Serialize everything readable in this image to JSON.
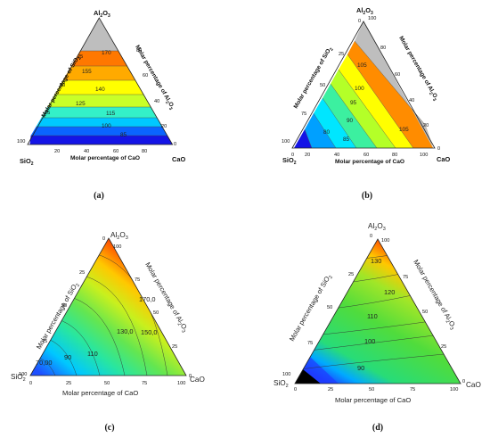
{
  "chart_data": [
    {
      "panel": "a",
      "type": "ternary",
      "caption": "(a)",
      "corners": {
        "top": "Al2O3",
        "left": "SiO2",
        "right": "CaO"
      },
      "axis_labels": {
        "left": "Molar percentage of SiO2",
        "right": "Molar percentage of Al2O3",
        "bottom": "Molar percentage of CaO"
      },
      "ticks_left": [
        "25",
        "50",
        "75",
        "100"
      ],
      "ticks_right": [
        "80",
        "60",
        "40",
        "20",
        "0"
      ],
      "ticks_bottom": [
        "20",
        "40",
        "60",
        "80"
      ],
      "contour_labels": [
        "170",
        "155",
        "140",
        "125",
        "115",
        "100",
        "85"
      ],
      "colors": [
        "#1414e6",
        "#0a64ff",
        "#00c8ff",
        "#34f0c8",
        "#c8ff28",
        "#ffff00",
        "#ffaa00",
        "#ff7800",
        "#bebebe"
      ]
    },
    {
      "panel": "b",
      "type": "ternary",
      "caption": "(b)",
      "corners": {
        "top": "Al2O3",
        "left": "SiO2",
        "right": "CaO"
      },
      "axis_labels": {
        "left": "Molar percentage of SiO2",
        "right": "Molar percentage of Al2O3",
        "bottom": "Molar percentage of CaO"
      },
      "ticks_left": [
        "0",
        "25",
        "50",
        "75",
        "100"
      ],
      "ticks_right": [
        "100",
        "80",
        "60",
        "40",
        "20",
        "0"
      ],
      "ticks_bottom": [
        "0",
        "20",
        "40",
        "60",
        "80",
        "100"
      ],
      "contour_labels": [
        "80",
        "85",
        "90",
        "95",
        "100",
        "105",
        "105"
      ],
      "colors": [
        "#1414e6",
        "#00a0ff",
        "#00e6ff",
        "#3cf0a0",
        "#b4ff28",
        "#ffff00",
        "#ff8c00",
        "#bebebe"
      ]
    },
    {
      "panel": "c",
      "type": "ternary",
      "caption": "(c)",
      "corners": {
        "top": "Al2O3",
        "left": "SiO2",
        "right": "CaO"
      },
      "axis_labels": {
        "left": "Molar percentage of SiO2",
        "right": "Molar percentage of Al2O3",
        "bottom": "Molar percentage of CaO"
      },
      "ticks_left": [
        "0",
        "25",
        "50",
        "75",
        "100"
      ],
      "ticks_right": [
        "100",
        "75",
        "50",
        "25",
        "0"
      ],
      "ticks_bottom": [
        "0",
        "25",
        "50",
        "75",
        "100"
      ],
      "contour_labels": [
        "70,00",
        "90",
        "110",
        "130,0",
        "150,0",
        "170,0"
      ],
      "colors": [
        "#1e50ff",
        "#00c8ff",
        "#28e6a0",
        "#64e650",
        "#c8f01e",
        "#ffc800",
        "#ff6400",
        "#e61414"
      ]
    },
    {
      "panel": "d",
      "type": "ternary",
      "caption": "(d)",
      "corners": {
        "top": "Al2O3",
        "left": "SiO2",
        "right": "CaO"
      },
      "axis_labels": {
        "left": "Molar percentage of SiO2",
        "right": "Molar percentage of Al2O3",
        "bottom": "Molar percentage of CaO"
      },
      "ticks_left": [
        "0",
        "25",
        "50",
        "75",
        "100"
      ],
      "ticks_right": [
        "100",
        "75",
        "50",
        "25",
        "0"
      ],
      "ticks_bottom": [
        "0",
        "25",
        "50",
        "75",
        "100"
      ],
      "contour_labels": [
        "90",
        "100",
        "110",
        "120",
        "130"
      ],
      "colors": [
        "#000000",
        "#1e3cff",
        "#00aaff",
        "#28dc78",
        "#50dc3c",
        "#c8f014",
        "#ffb400",
        "#ff3c00"
      ]
    }
  ]
}
